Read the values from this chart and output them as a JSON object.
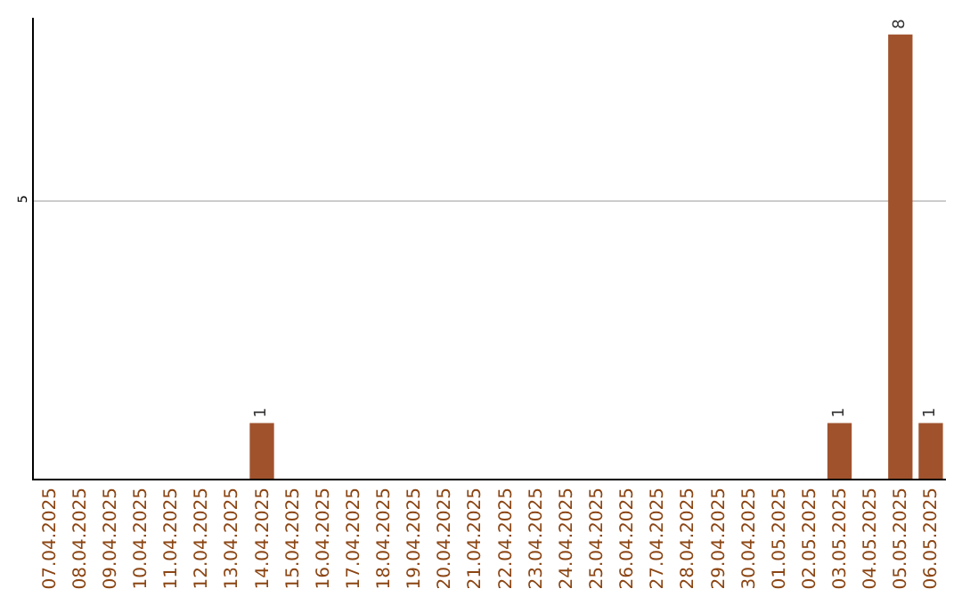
{
  "chart_data": {
    "type": "bar",
    "categories": [
      "07.04.2025",
      "08.04.2025",
      "09.04.2025",
      "10.04.2025",
      "11.04.2025",
      "12.04.2025",
      "13.04.2025",
      "14.04.2025",
      "15.04.2025",
      "16.04.2025",
      "17.04.2025",
      "18.04.2025",
      "19.04.2025",
      "20.04.2025",
      "21.04.2025",
      "22.04.2025",
      "23.04.2025",
      "24.04.2025",
      "25.04.2025",
      "26.04.2025",
      "27.04.2025",
      "28.04.2025",
      "29.04.2025",
      "30.04.2025",
      "01.05.2025",
      "02.05.2025",
      "03.05.2025",
      "04.05.2025",
      "05.05.2025",
      "06.05.2025"
    ],
    "values": [
      0,
      0,
      0,
      0,
      0,
      0,
      0,
      1,
      0,
      0,
      0,
      0,
      0,
      0,
      0,
      0,
      0,
      0,
      0,
      0,
      0,
      0,
      0,
      0,
      0,
      0,
      1,
      0,
      8,
      1
    ],
    "value_labels": [
      null,
      null,
      null,
      null,
      null,
      null,
      null,
      "1",
      null,
      null,
      null,
      null,
      null,
      null,
      null,
      null,
      null,
      null,
      null,
      null,
      null,
      null,
      null,
      null,
      null,
      null,
      "1",
      null,
      "8",
      "1"
    ],
    "color": "#a0522d",
    "ylim": [
      0,
      8.3
    ],
    "yticks": [
      5
    ],
    "grid": "y",
    "legend": false
  }
}
